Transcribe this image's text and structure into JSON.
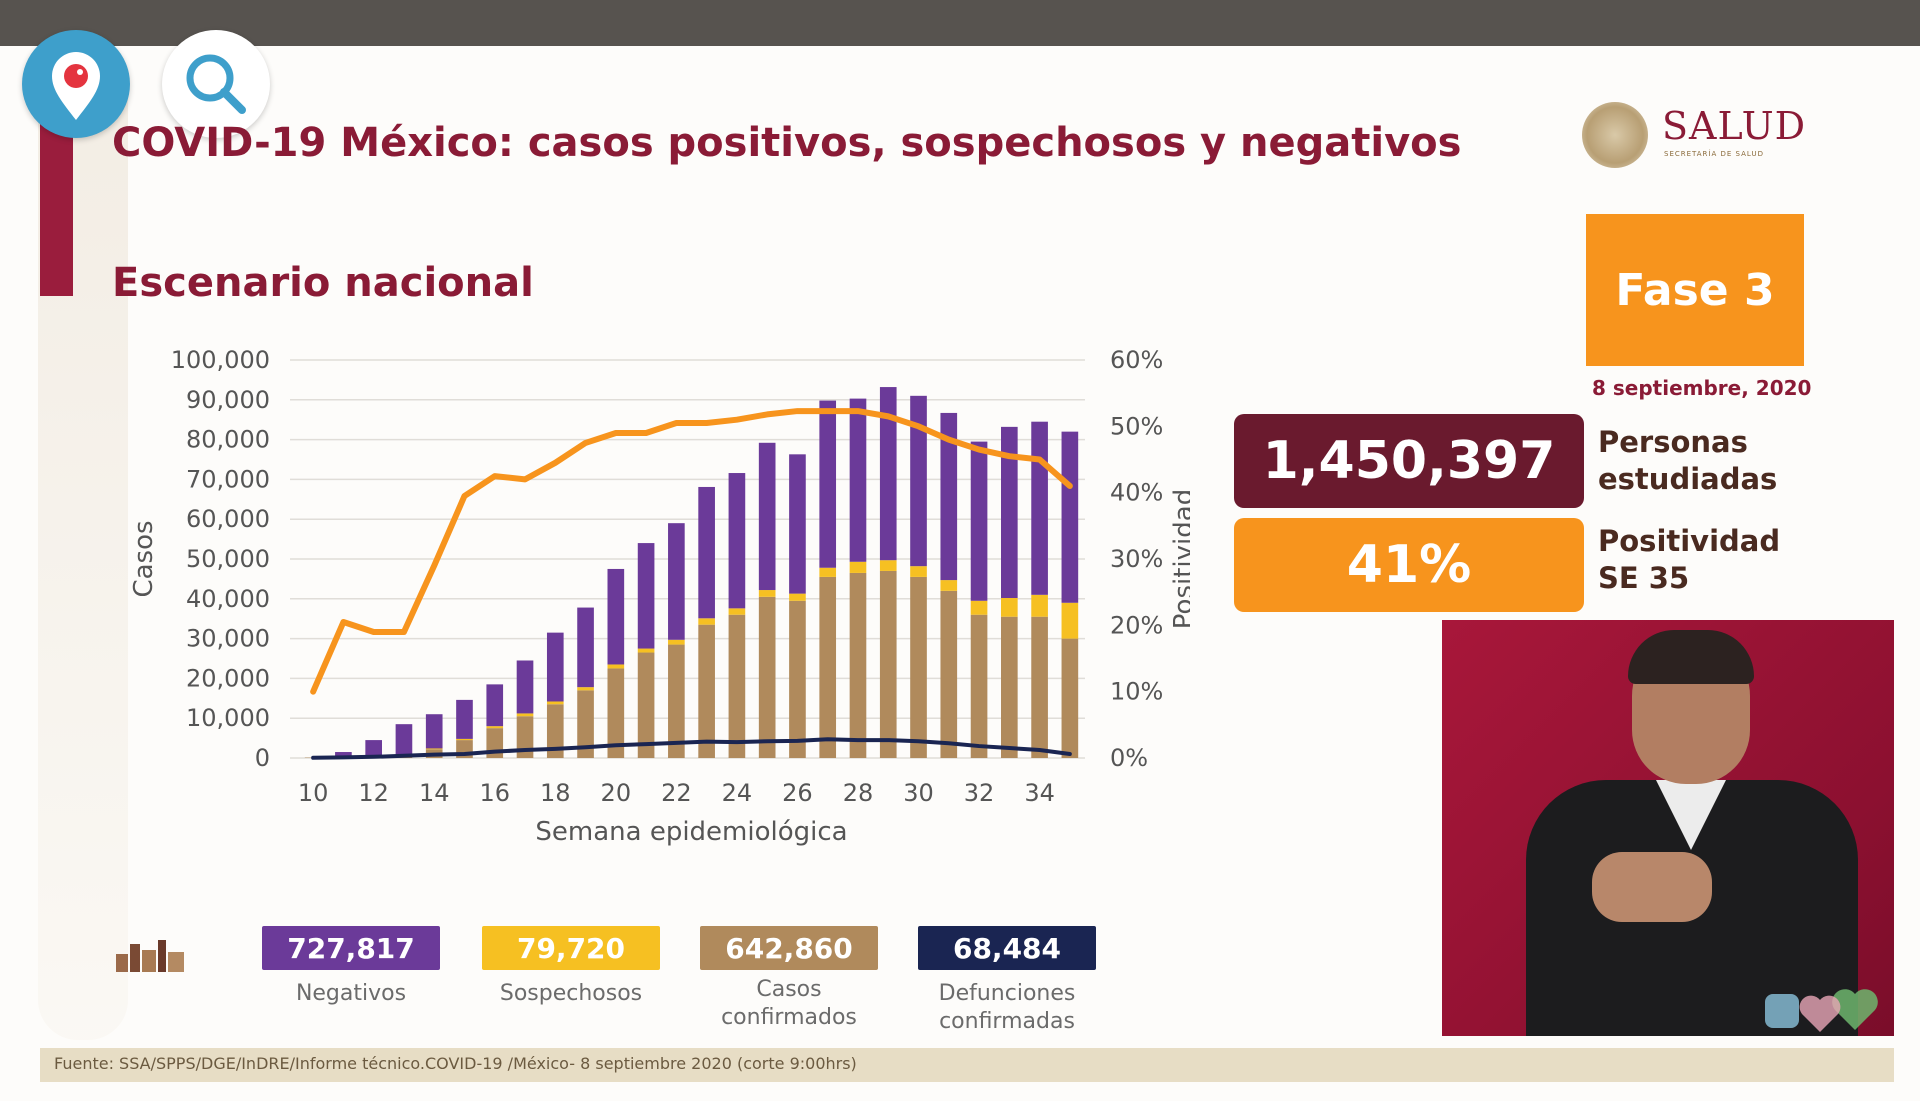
{
  "page": {
    "title": "COVID-19 México: casos positivos, sospechosos y negativos",
    "subtitle": "Escenario nacional",
    "brand": "SALUD",
    "brand_sub": "SECRETARÍA DE SALUD"
  },
  "phase": {
    "label": "Fase 3",
    "date": "8 septiembre, 2020"
  },
  "stats": [
    {
      "value": "1,450,397",
      "label": "Personas estudiadas"
    },
    {
      "value": "41%",
      "label": "Positividad SE 35"
    }
  ],
  "legend": [
    {
      "value": "727,817",
      "label": "Negativos",
      "color": "#6b3a99"
    },
    {
      "value": "79,720",
      "label": "Sospechosos",
      "color": "#f6c022"
    },
    {
      "value": "642,860",
      "label": "Casos confirmados",
      "color": "#b08a5c"
    },
    {
      "value": "68,484",
      "label": "Defunciones confirmadas",
      "color": "#1a2552"
    }
  ],
  "footer": "Fuente: SSA/SPPS/DGE/InDRE/Informe técnico.COVID-19 /México- 8 septiembre 2020 (corte 9:00hrs)",
  "icons": {
    "left_overlay": "periscope-icon",
    "second_overlay": "search-icon"
  },
  "chart_data": {
    "type": "bar",
    "stacked": true,
    "x": [
      10,
      11,
      12,
      13,
      14,
      15,
      16,
      17,
      18,
      19,
      20,
      21,
      22,
      23,
      24,
      25,
      26,
      27,
      28,
      29,
      30,
      31,
      32,
      33,
      34,
      35
    ],
    "x_tick_labels": [
      "10",
      "12",
      "14",
      "16",
      "18",
      "20",
      "22",
      "24",
      "26",
      "28",
      "30",
      "32",
      "34"
    ],
    "xlabel": "Semana epidemiológica",
    "ylabel": "Casos",
    "y2label": "Positividad",
    "ylim": [
      0,
      100000
    ],
    "y_tick_labels": [
      "0",
      "10,000",
      "20,000",
      "30,000",
      "40,000",
      "50,000",
      "60,000",
      "70,000",
      "80,000",
      "90,000",
      "100,000"
    ],
    "y2lim": [
      0,
      60
    ],
    "y2_tick_labels": [
      "0%",
      "10%",
      "20%",
      "30%",
      "40%",
      "50%",
      "60%"
    ],
    "grid": true,
    "series": [
      {
        "name": "Casos confirmados",
        "color": "#b08a5c",
        "values": [
          100,
          300,
          500,
          1000,
          2200,
          4500,
          7500,
          10500,
          13500,
          17000,
          22500,
          26500,
          28500,
          33500,
          36000,
          40500,
          39500,
          45500,
          46500,
          47000,
          45500,
          42000,
          36000,
          35500,
          35500,
          30000
        ]
      },
      {
        "name": "Sospechosos",
        "color": "#f6c022",
        "values": [
          0,
          0,
          0,
          0,
          200,
          300,
          500,
          700,
          700,
          800,
          1000,
          1000,
          1200,
          1600,
          1600,
          1700,
          1800,
          2300,
          2800,
          2700,
          2700,
          2700,
          3500,
          4700,
          5500,
          9000
        ]
      },
      {
        "name": "Negativos",
        "color": "#6b3a99",
        "values": [
          0,
          1200,
          4000,
          7500,
          8600,
          9800,
          10500,
          13300,
          17300,
          20000,
          24000,
          26500,
          29300,
          33000,
          34000,
          37000,
          35000,
          42000,
          41000,
          43500,
          42800,
          42000,
          40000,
          43000,
          43500,
          43000
        ]
      },
      {
        "name": "Defunciones confirmadas",
        "type": "line",
        "color": "#1a2552",
        "axis": "y",
        "values": [
          50,
          150,
          300,
          550,
          850,
          1000,
          1600,
          2000,
          2300,
          2700,
          3200,
          3500,
          3800,
          4100,
          4000,
          4200,
          4300,
          4700,
          4500,
          4500,
          4200,
          3700,
          3000,
          2500,
          2000,
          1000
        ]
      },
      {
        "name": "Positividad",
        "type": "line",
        "color": "#f7941d",
        "axis": "y2",
        "values": [
          10,
          20.5,
          19,
          19,
          29,
          39.5,
          42.5,
          42,
          44.5,
          47.5,
          49,
          49,
          50.5,
          50.5,
          51,
          51.8,
          52.3,
          52.3,
          52.3,
          51.5,
          50,
          48,
          46.5,
          45.5,
          45,
          41
        ]
      }
    ]
  }
}
